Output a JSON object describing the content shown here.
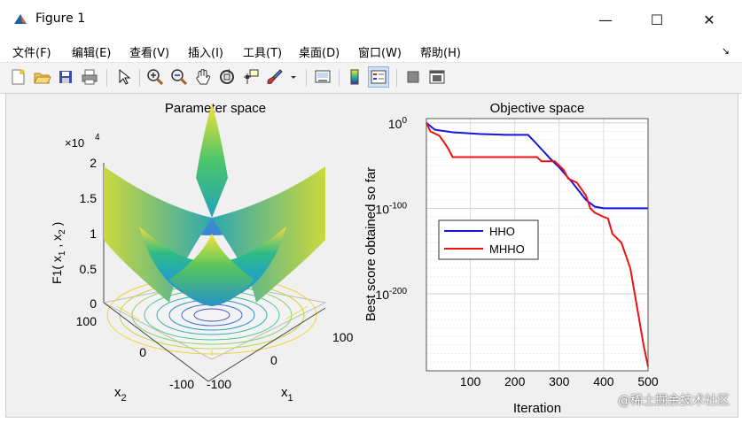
{
  "window": {
    "title": "Figure 1",
    "controls": {
      "minimize": "—",
      "maximize": "☐",
      "close": "✕"
    }
  },
  "menu": {
    "items": [
      "文件(F)",
      "编辑(E)",
      "查看(V)",
      "插入(I)",
      "工具(T)",
      "桌面(D)",
      "窗口(W)",
      "帮助(H)"
    ],
    "overflow_arrow": "↘"
  },
  "toolbar": {
    "icons": [
      "new-figure-icon",
      "open-file-icon",
      "save-icon",
      "print-icon",
      "pointer-icon",
      "zoom-in-icon",
      "zoom-out-icon",
      "pan-icon",
      "rotate-3d-icon",
      "data-cursor-icon",
      "brush-icon",
      "link-plot-icon",
      "insert-colorbar-icon",
      "insert-legend-icon",
      "hide-plot-tools-icon",
      "show-plot-tools-icon"
    ]
  },
  "param_plot": {
    "title": "Parameter space",
    "zlabel": "F1( x",
    "zlabel_sub1": "1",
    "zlabel_mid": " , x",
    "zlabel_sub2": "2",
    "zlabel_end": " )",
    "multiplier": "×10",
    "multiplier_exp": "4",
    "z_ticks": [
      "2",
      "1.5",
      "1",
      "0.5",
      "0"
    ],
    "x1_ticks": [
      "100",
      "0",
      "-100"
    ],
    "x2_ticks": [
      "100",
      "0",
      "-100"
    ],
    "x1_label": "x",
    "x1_sub": "1",
    "x2_label": "x",
    "x2_sub": "2"
  },
  "chart_data": {
    "type": "line",
    "title": "Objective space",
    "xlabel": "Iteration",
    "ylabel": "Best score obtained so far",
    "xlim": [
      1,
      500
    ],
    "x_ticks": [
      "100",
      "200",
      "300",
      "400",
      "500"
    ],
    "y_scale": "log",
    "y_ticks": [
      "10^0",
      "10^-100",
      "10^-200"
    ],
    "y_tick_base": "10",
    "y_tick_exps": [
      "0",
      "-100",
      "-200"
    ],
    "legend_position": "middle-left",
    "grid": true,
    "series": [
      {
        "name": "HHO",
        "color": "#1515e0",
        "x": [
          1,
          20,
          60,
          120,
          180,
          230,
          250,
          280,
          300,
          330,
          360,
          380,
          400,
          450,
          500
        ],
        "log10_y": [
          0,
          -8,
          -11,
          -13,
          -14,
          -14,
          -25,
          -42,
          -52,
          -70,
          -90,
          -98,
          -100,
          -100,
          -100
        ]
      },
      {
        "name": "MHHO",
        "color": "#ee1111",
        "x": [
          1,
          10,
          30,
          40,
          50,
          60,
          120,
          200,
          250,
          260,
          290,
          310,
          320,
          340,
          360,
          370,
          380,
          400,
          410,
          420,
          440,
          460,
          470,
          480,
          490,
          500
        ],
        "log10_y": [
          0,
          -10,
          -15,
          -22,
          -30,
          -40,
          -40,
          -40,
          -40,
          -45,
          -45,
          -55,
          -65,
          -70,
          -85,
          -100,
          -105,
          -110,
          -112,
          -130,
          -140,
          -170,
          -200,
          -230,
          -260,
          -285
        ]
      }
    ]
  },
  "watermark": "@稀土掘金技术社区"
}
